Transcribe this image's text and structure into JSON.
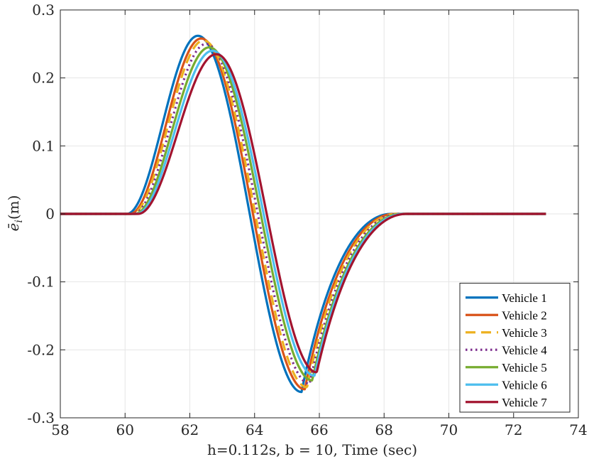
{
  "chart_data": {
    "type": "line",
    "title": "",
    "xlabel": "h=0.112s, b = 10, Time (sec)",
    "ylabel_symbol": "ē",
    "ylabel_subscript": "i",
    "ylabel_unit": "(m)",
    "xlim": [
      58,
      74
    ],
    "ylim": [
      -0.3,
      0.3
    ],
    "grid": true,
    "legend_position": "bottom-right",
    "x_ticks": [
      58,
      60,
      62,
      64,
      66,
      68,
      70,
      72,
      74
    ],
    "x_tick_labels": [
      "58",
      "60",
      "62",
      "64",
      "66",
      "68",
      "70",
      "72",
      "74"
    ],
    "y_ticks": [
      -0.3,
      -0.2,
      -0.1,
      0,
      0.1,
      0.2,
      0.3
    ],
    "y_tick_labels": [
      "-0.3",
      "-0.2",
      "-0.1",
      "0",
      "0.1",
      "0.2",
      "0.3"
    ],
    "x_range": [
      58,
      73
    ],
    "series": [
      {
        "name": "Vehicle 1",
        "color": "#0072BD",
        "style": "solid",
        "peak": 0.262,
        "peak_time": 62.25,
        "trough": -0.262,
        "trough_time": 65.45,
        "onset": 60.05
      },
      {
        "name": "Vehicle 2",
        "color": "#D95319",
        "style": "solid",
        "peak": 0.258,
        "peak_time": 62.35,
        "trough": -0.258,
        "trough_time": 65.55,
        "onset": 60.15
      },
      {
        "name": "Vehicle 3",
        "color": "#EDB120",
        "style": "dashed",
        "peak": 0.255,
        "peak_time": 62.42,
        "trough": -0.255,
        "trough_time": 65.62,
        "onset": 60.2
      },
      {
        "name": "Vehicle 4",
        "color": "#7E2F8E",
        "style": "dotted",
        "peak": 0.25,
        "peak_time": 62.5,
        "trough": -0.25,
        "trough_time": 65.7,
        "onset": 60.25
      },
      {
        "name": "Vehicle 5",
        "color": "#77AC30",
        "style": "solid",
        "peak": 0.245,
        "peak_time": 62.6,
        "trough": -0.245,
        "trough_time": 65.78,
        "onset": 60.3
      },
      {
        "name": "Vehicle 6",
        "color": "#4DBEEE",
        "style": "solid",
        "peak": 0.24,
        "peak_time": 62.7,
        "trough": -0.238,
        "trough_time": 65.85,
        "onset": 60.35
      },
      {
        "name": "Vehicle 7",
        "color": "#A2142F",
        "style": "solid",
        "peak": 0.235,
        "peak_time": 62.82,
        "trough": -0.233,
        "trough_time": 65.92,
        "onset": 60.4
      }
    ]
  }
}
